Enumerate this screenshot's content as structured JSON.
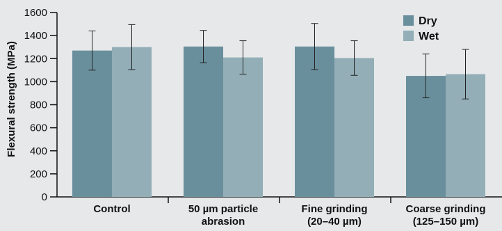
{
  "chart_data": {
    "type": "bar",
    "title": "",
    "xlabel": "",
    "ylabel": "Flexural strength (MPa)",
    "ylim": [
      0,
      1600
    ],
    "yticks": [
      0,
      200,
      400,
      600,
      800,
      1000,
      1200,
      1400,
      1600
    ],
    "grid": false,
    "legend_position": "top-right",
    "categories": [
      [
        "Control"
      ],
      [
        "50 µm particle",
        "abrasion"
      ],
      [
        "Fine grinding",
        "(20–40 µm)"
      ],
      [
        "Coarse grinding",
        "(125–150 µm)"
      ]
    ],
    "series": [
      {
        "name": "Dry",
        "color": "#6a8f9c",
        "values": [
          1270,
          1305,
          1305,
          1050
        ],
        "error": [
          170,
          140,
          200,
          190
        ]
      },
      {
        "name": "Wet",
        "color": "#93aeb7",
        "values": [
          1300,
          1210,
          1205,
          1065
        ],
        "error": [
          195,
          145,
          150,
          215
        ]
      }
    ]
  }
}
